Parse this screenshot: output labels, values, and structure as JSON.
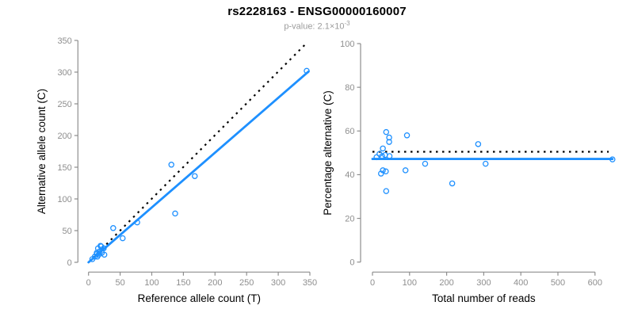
{
  "header": {
    "title": "rs2228163 - ENSG00000160007",
    "subtitle_base": "p-value: 2.1×10",
    "subtitle_exponent": "-3"
  },
  "colors": {
    "accent": "#1E90FF",
    "identity_line": "#000000",
    "axis": "#8e8e8e",
    "tick_label": "#8e8e8e",
    "title": "#000000",
    "subtitle": "#9b9b9b"
  },
  "chart_data": [
    {
      "name": "allele-counts",
      "type": "scatter",
      "xlabel": "Reference allele count (T)",
      "ylabel": "Alternative allele count (C)",
      "xlim": [
        0,
        350
      ],
      "ylim": [
        0,
        350
      ],
      "xticks": [
        0,
        50,
        100,
        150,
        200,
        250,
        300,
        350
      ],
      "yticks": [
        0,
        50,
        100,
        150,
        200,
        250,
        300,
        350
      ],
      "grid": false,
      "legend": false,
      "points": [
        [
          6,
          5
        ],
        [
          10,
          9
        ],
        [
          13,
          13
        ],
        [
          14,
          9
        ],
        [
          13,
          15
        ],
        [
          16,
          12
        ],
        [
          17,
          17
        ],
        [
          15,
          22
        ],
        [
          19,
          26
        ],
        [
          20,
          25
        ],
        [
          21,
          15
        ],
        [
          24,
          22
        ],
        [
          25,
          12
        ],
        [
          39,
          54
        ],
        [
          54,
          38
        ],
        [
          77,
          63
        ],
        [
          131,
          154
        ],
        [
          137,
          77
        ],
        [
          168,
          136
        ],
        [
          345,
          302
        ]
      ],
      "lines": [
        {
          "name": "identity",
          "style": "dotted",
          "color": "#000000",
          "x1": 0,
          "y1": 0,
          "x2": 344,
          "y2": 345
        },
        {
          "name": "regression",
          "style": "solid",
          "color": "#1E90FF",
          "x1": 0,
          "y1": 0,
          "x2": 348,
          "y2": 301
        }
      ]
    },
    {
      "name": "percentage-alternative",
      "type": "scatter",
      "xlabel": "Total number of reads",
      "ylabel": "Percentage alternative (C)",
      "xlim": [
        0,
        650
      ],
      "ylim": [
        0,
        100
      ],
      "xticks": [
        0,
        100,
        200,
        300,
        400,
        500,
        600
      ],
      "yticks": [
        0,
        20,
        40,
        60,
        80,
        100
      ],
      "grid": false,
      "legend": false,
      "points": [
        [
          11,
          48
        ],
        [
          19,
          49.5
        ],
        [
          23,
          40.5
        ],
        [
          26,
          48.5
        ],
        [
          28,
          52
        ],
        [
          28,
          42
        ],
        [
          34,
          49
        ],
        [
          36,
          41.5
        ],
        [
          37,
          59.5
        ],
        [
          37,
          32.5
        ],
        [
          45,
          57
        ],
        [
          45,
          55
        ],
        [
          46,
          48.5
        ],
        [
          89,
          42
        ],
        [
          93,
          58
        ],
        [
          142,
          45
        ],
        [
          215,
          36
        ],
        [
          285,
          54
        ],
        [
          305,
          45
        ],
        [
          647,
          47
        ]
      ],
      "lines": [
        {
          "name": "expected-50pct",
          "style": "dotted",
          "color": "#000000",
          "x1": 0,
          "y1": 50.5,
          "x2": 637,
          "y2": 50.5
        },
        {
          "name": "observed-mean",
          "style": "solid",
          "color": "#1E90FF",
          "x1": 0,
          "y1": 47.2,
          "x2": 647,
          "y2": 47.2
        }
      ]
    }
  ]
}
